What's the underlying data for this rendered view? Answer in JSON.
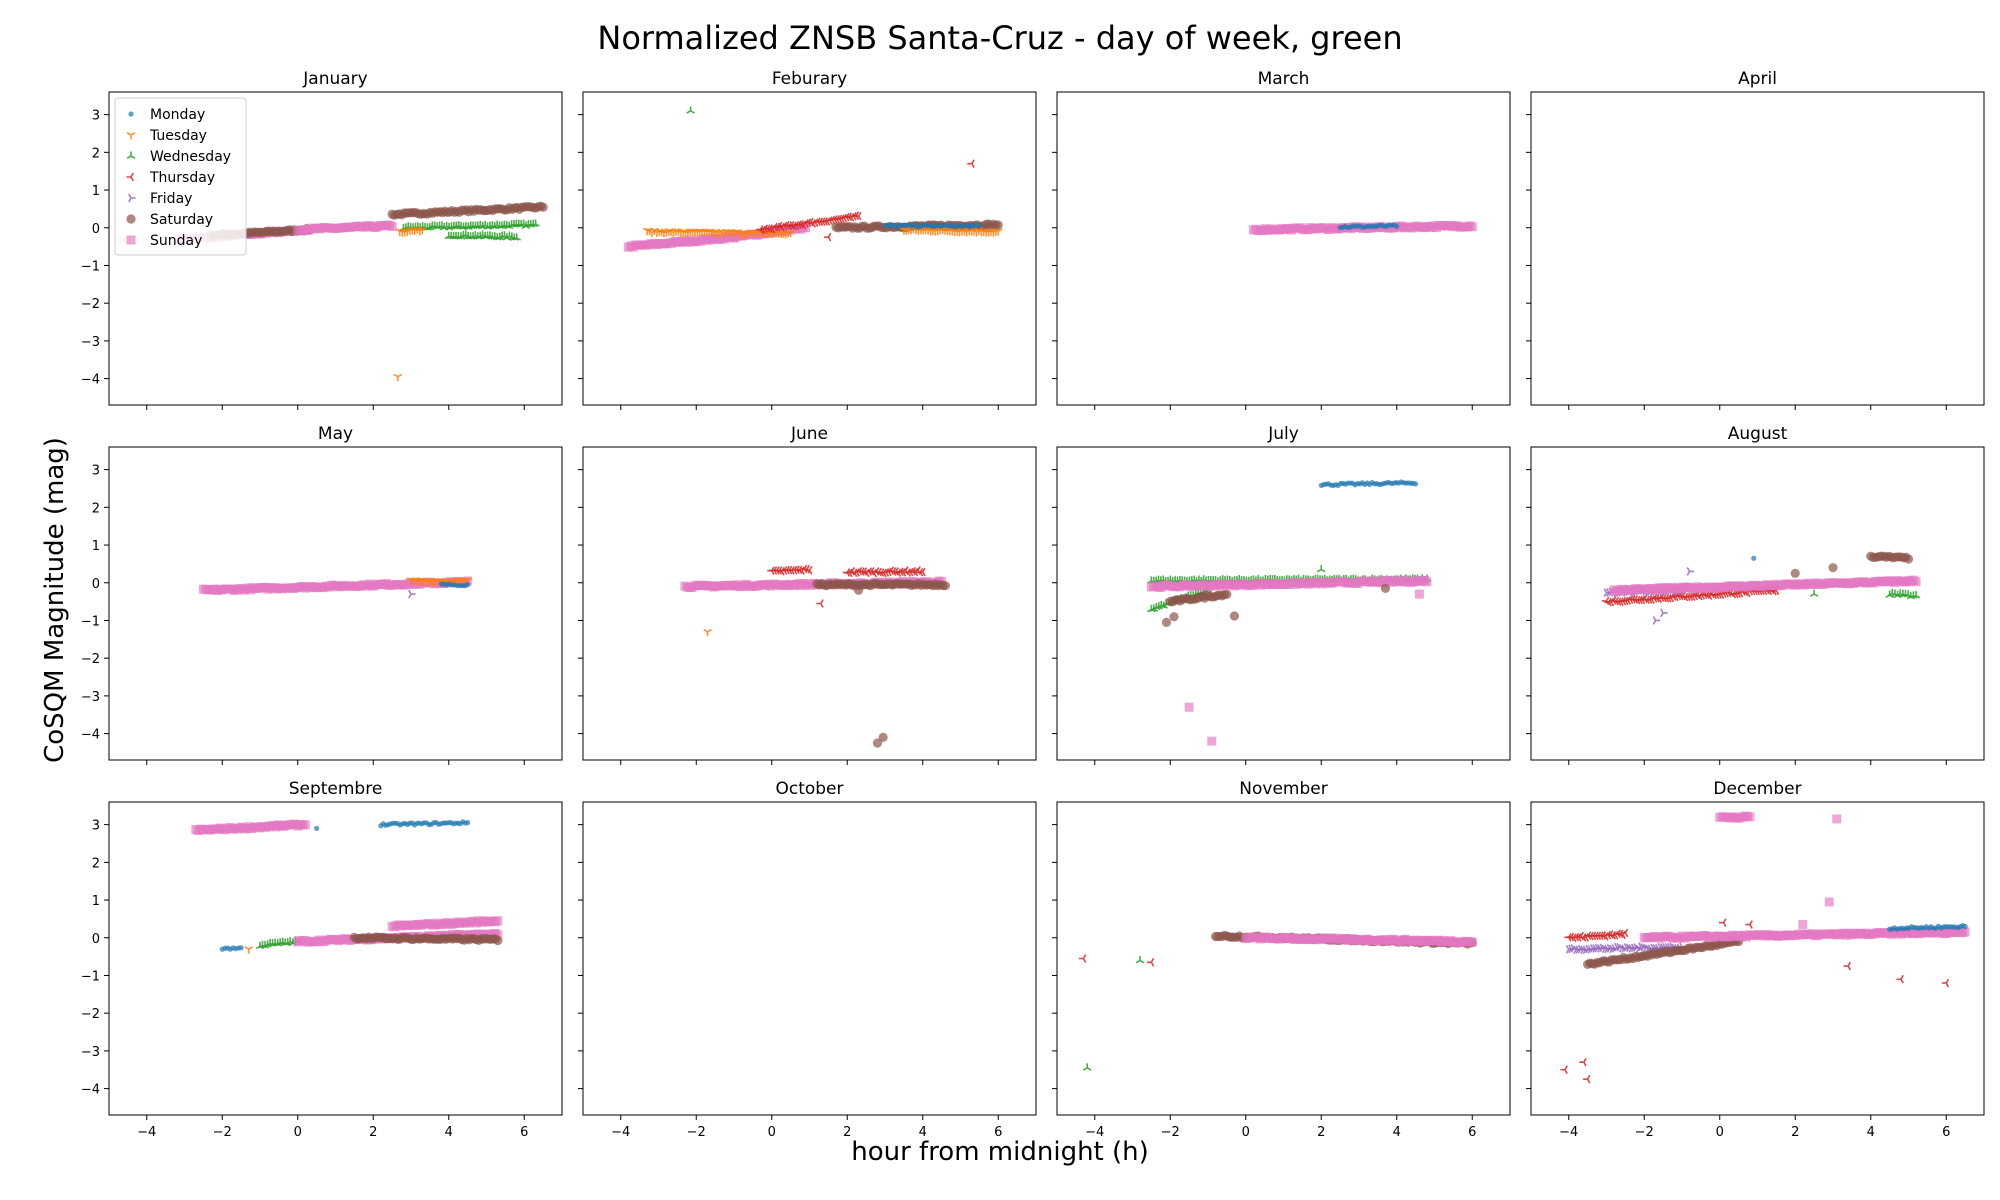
{
  "chart_data": {
    "type": "scatter",
    "title": "Normalized ZNSB Santa-Cruz - day of week, green",
    "xlabel": "hour from midnight (h)",
    "ylabel": "CoSQM Magnitude (mag)",
    "xlim": [
      -5,
      7
    ],
    "ylim": [
      -4.7,
      3.6
    ],
    "xticks": [
      -4,
      -2,
      0,
      2,
      4,
      6
    ],
    "yticks": [
      -4,
      -3,
      -2,
      -1,
      0,
      1,
      2,
      3
    ],
    "grid": false,
    "legend_placement": "top-left of first panel",
    "series": [
      {
        "name": "Monday",
        "color": "#1f77b4",
        "marker": "circle"
      },
      {
        "name": "Tuesday",
        "color": "#ff7f0e",
        "marker": "tri-down"
      },
      {
        "name": "Wednesday",
        "color": "#2ca02c",
        "marker": "tri-up"
      },
      {
        "name": "Thursday",
        "color": "#d62728",
        "marker": "tri-left"
      },
      {
        "name": "Friday",
        "color": "#9467bd",
        "marker": "tri-right"
      },
      {
        "name": "Saturday",
        "color": "#8c564b",
        "marker": "circle-large"
      },
      {
        "name": "Sunday",
        "color": "#e377c2",
        "marker": "square"
      }
    ],
    "panels": [
      {
        "title": "January",
        "runs": [
          {
            "s": 6,
            "x0": -3.2,
            "x1": -0.2,
            "y0": -0.33,
            "y1": -0.08
          },
          {
            "s": 5,
            "x0": -2.3,
            "x1": 0.3,
            "y0": -0.2,
            "y1": -0.05
          },
          {
            "s": 5,
            "x0": 2.5,
            "x1": 6.5,
            "y0": 0.35,
            "y1": 0.55
          },
          {
            "s": 2,
            "x0": 2.8,
            "x1": 6.3,
            "y0": 0.0,
            "y1": 0.08
          },
          {
            "s": 2,
            "x0": 4.0,
            "x1": 5.8,
            "y0": -0.2,
            "y1": -0.25
          },
          {
            "s": 1,
            "x0": 2.7,
            "x1": 3.3,
            "y0": -0.1,
            "y1": -0.05
          },
          {
            "s": 6,
            "x0": 0.0,
            "x1": 2.5,
            "y0": -0.05,
            "y1": 0.05
          }
        ],
        "points": [
          {
            "s": 1,
            "x": 2.65,
            "y": -3.95
          }
        ]
      },
      {
        "title": "Feburary",
        "runs": [
          {
            "s": 6,
            "x0": -3.8,
            "x1": -1.0,
            "y0": -0.5,
            "y1": -0.25
          },
          {
            "s": 6,
            "x0": -1.0,
            "x1": 0.9,
            "y0": -0.25,
            "y1": 0.0
          },
          {
            "s": 5,
            "x0": 1.7,
            "x1": 6.0,
            "y0": 0.0,
            "y1": 0.08
          },
          {
            "s": 1,
            "x0": -3.3,
            "x1": 0.5,
            "y0": -0.1,
            "y1": -0.15
          },
          {
            "s": 1,
            "x0": 3.5,
            "x1": 6.0,
            "y0": -0.05,
            "y1": -0.1
          },
          {
            "s": 0,
            "x0": 3.0,
            "x1": 5.5,
            "y0": 0.05,
            "y1": 0.05
          },
          {
            "s": 3,
            "x0": -0.3,
            "x1": 2.3,
            "y0": -0.05,
            "y1": 0.3
          }
        ],
        "points": [
          {
            "s": 2,
            "x": -2.15,
            "y": 3.1
          },
          {
            "s": 3,
            "x": 5.3,
            "y": 1.7
          },
          {
            "s": 3,
            "x": 1.5,
            "y": -0.25
          }
        ]
      },
      {
        "title": "March",
        "runs": [
          {
            "s": 6,
            "x0": 0.2,
            "x1": 6.0,
            "y0": -0.05,
            "y1": 0.05
          },
          {
            "s": 0,
            "x0": 2.5,
            "x1": 4.0,
            "y0": 0.02,
            "y1": 0.05
          }
        ],
        "points": []
      },
      {
        "title": "April",
        "runs": [],
        "points": []
      },
      {
        "title": "May",
        "runs": [
          {
            "s": 6,
            "x0": -2.5,
            "x1": 4.5,
            "y0": -0.2,
            "y1": 0.02
          },
          {
            "s": 1,
            "x0": 3.0,
            "x1": 4.5,
            "y0": 0.05,
            "y1": 0.05
          },
          {
            "s": 0,
            "x0": 3.8,
            "x1": 4.5,
            "y0": -0.05,
            "y1": -0.05
          }
        ],
        "points": [
          {
            "s": 4,
            "x": 3.0,
            "y": -0.3
          }
        ]
      },
      {
        "title": "June",
        "runs": [
          {
            "s": 6,
            "x0": -2.3,
            "x1": 4.5,
            "y0": -0.1,
            "y1": 0.02
          },
          {
            "s": 3,
            "x0": 0.0,
            "x1": 1.0,
            "y0": 0.3,
            "y1": 0.35
          },
          {
            "s": 3,
            "x0": 2.0,
            "x1": 4.0,
            "y0": 0.28,
            "y1": 0.3
          },
          {
            "s": 5,
            "x0": 1.2,
            "x1": 4.6,
            "y0": -0.05,
            "y1": -0.05
          }
        ],
        "points": [
          {
            "s": 1,
            "x": -1.7,
            "y": -1.3
          },
          {
            "s": 3,
            "x": 1.3,
            "y": -0.55
          },
          {
            "s": 5,
            "x": 2.3,
            "y": -0.2
          },
          {
            "s": 5,
            "x": 2.8,
            "y": -4.25
          },
          {
            "s": 5,
            "x": 2.95,
            "y": -4.1
          }
        ]
      },
      {
        "title": "July",
        "runs": [
          {
            "s": 0,
            "x0": 2.0,
            "x1": 4.5,
            "y0": 2.6,
            "y1": 2.65
          },
          {
            "s": 2,
            "x0": -2.5,
            "x1": 4.8,
            "y0": 0.05,
            "y1": 0.08
          },
          {
            "s": 2,
            "x0": -2.5,
            "x1": -1.0,
            "y0": -0.7,
            "y1": -0.2
          },
          {
            "s": 5,
            "x0": -2.0,
            "x1": -0.5,
            "y0": -0.5,
            "y1": -0.3
          },
          {
            "s": 6,
            "x0": -2.5,
            "x1": 4.8,
            "y0": -0.1,
            "y1": 0.05
          }
        ],
        "points": [
          {
            "s": 5,
            "x": -2.1,
            "y": -1.05
          },
          {
            "s": 5,
            "x": -1.9,
            "y": -0.9
          },
          {
            "s": 5,
            "x": -0.3,
            "y": -0.88
          },
          {
            "s": 6,
            "x": -1.5,
            "y": -3.3
          },
          {
            "s": 6,
            "x": -0.9,
            "y": -4.2
          },
          {
            "s": 6,
            "x": 4.6,
            "y": -0.3
          },
          {
            "s": 2,
            "x": 2.0,
            "y": 0.35
          },
          {
            "s": 5,
            "x": 3.7,
            "y": -0.15
          }
        ]
      },
      {
        "title": "August",
        "runs": [
          {
            "s": 3,
            "x0": -3.0,
            "x1": 1.5,
            "y0": -0.5,
            "y1": -0.2
          },
          {
            "s": 4,
            "x0": -3.0,
            "x1": -1.0,
            "y0": -0.25,
            "y1": -0.2
          },
          {
            "s": 6,
            "x0": -2.8,
            "x1": 5.2,
            "y0": -0.2,
            "y1": 0.05
          },
          {
            "s": 5,
            "x0": 4.0,
            "x1": 5.0,
            "y0": 0.7,
            "y1": 0.65
          },
          {
            "s": 2,
            "x0": 4.5,
            "x1": 5.2,
            "y0": -0.3,
            "y1": -0.35
          }
        ],
        "points": [
          {
            "s": 4,
            "x": -1.7,
            "y": -1.0
          },
          {
            "s": 4,
            "x": -1.5,
            "y": -0.8
          },
          {
            "s": 0,
            "x": 0.9,
            "y": 0.65
          },
          {
            "s": 5,
            "x": 2.0,
            "y": 0.25
          },
          {
            "s": 5,
            "x": 3.0,
            "y": 0.4
          },
          {
            "s": 2,
            "x": 2.5,
            "y": -0.3
          },
          {
            "s": 4,
            "x": -0.8,
            "y": 0.3
          }
        ]
      },
      {
        "title": "Septembre",
        "runs": [
          {
            "s": 6,
            "x0": -2.7,
            "x1": 0.2,
            "y0": 2.85,
            "y1": 3.0
          },
          {
            "s": 0,
            "x0": 2.2,
            "x1": 4.5,
            "y0": 3.0,
            "y1": 3.05
          },
          {
            "s": 0,
            "x0": -2.0,
            "x1": -1.5,
            "y0": -0.28,
            "y1": -0.28
          },
          {
            "s": 2,
            "x0": -1.0,
            "x1": 0.0,
            "y0": -0.2,
            "y1": -0.1
          },
          {
            "s": 6,
            "x0": 0.0,
            "x1": 5.3,
            "y0": -0.1,
            "y1": 0.1
          },
          {
            "s": 6,
            "x0": 2.5,
            "x1": 5.3,
            "y0": 0.3,
            "y1": 0.45
          },
          {
            "s": 5,
            "x0": 1.5,
            "x1": 5.3,
            "y0": 0.0,
            "y1": -0.05
          }
        ],
        "points": [
          {
            "s": 1,
            "x": -1.3,
            "y": -0.3
          },
          {
            "s": 0,
            "x": 0.5,
            "y": 2.9
          }
        ]
      },
      {
        "title": "October",
        "runs": [],
        "points": []
      },
      {
        "title": "November",
        "runs": [
          {
            "s": 5,
            "x0": -0.8,
            "x1": 6.0,
            "y0": 0.05,
            "y1": -0.15
          },
          {
            "s": 6,
            "x0": 0.0,
            "x1": 6.0,
            "y0": 0.0,
            "y1": -0.1
          }
        ],
        "points": [
          {
            "s": 3,
            "x": -4.3,
            "y": -0.55
          },
          {
            "s": 2,
            "x": -2.8,
            "y": -0.6
          },
          {
            "s": 3,
            "x": -2.5,
            "y": -0.65
          },
          {
            "s": 2,
            "x": -4.2,
            "y": -3.45
          }
        ]
      },
      {
        "title": "December",
        "runs": [
          {
            "s": 3,
            "x0": -4.0,
            "x1": -2.5,
            "y0": 0.0,
            "y1": 0.1
          },
          {
            "s": 4,
            "x0": -4.0,
            "x1": -1.0,
            "y0": -0.3,
            "y1": -0.25
          },
          {
            "s": 5,
            "x0": -3.5,
            "x1": 0.5,
            "y0": -0.7,
            "y1": -0.1
          },
          {
            "s": 6,
            "x0": -2.0,
            "x1": 6.5,
            "y0": 0.0,
            "y1": 0.15
          },
          {
            "s": 0,
            "x0": 4.5,
            "x1": 6.5,
            "y0": 0.25,
            "y1": 0.3
          },
          {
            "s": 6,
            "x0": 0.0,
            "x1": 0.8,
            "y0": 3.2,
            "y1": 3.2
          }
        ],
        "points": [
          {
            "s": 6,
            "x": 3.1,
            "y": 3.15
          },
          {
            "s": 6,
            "x": 2.9,
            "y": 0.95
          },
          {
            "s": 6,
            "x": 2.2,
            "y": 0.35
          },
          {
            "s": 3,
            "x": -4.1,
            "y": -3.5
          },
          {
            "s": 3,
            "x": -3.6,
            "y": -3.3
          },
          {
            "s": 3,
            "x": -3.5,
            "y": -3.75
          },
          {
            "s": 3,
            "x": 3.4,
            "y": -0.75
          },
          {
            "s": 3,
            "x": 4.8,
            "y": -1.1
          },
          {
            "s": 3,
            "x": 6.0,
            "y": -1.2
          },
          {
            "s": 3,
            "x": 0.8,
            "y": 0.35
          },
          {
            "s": 3,
            "x": 0.1,
            "y": 0.4
          }
        ]
      }
    ]
  }
}
